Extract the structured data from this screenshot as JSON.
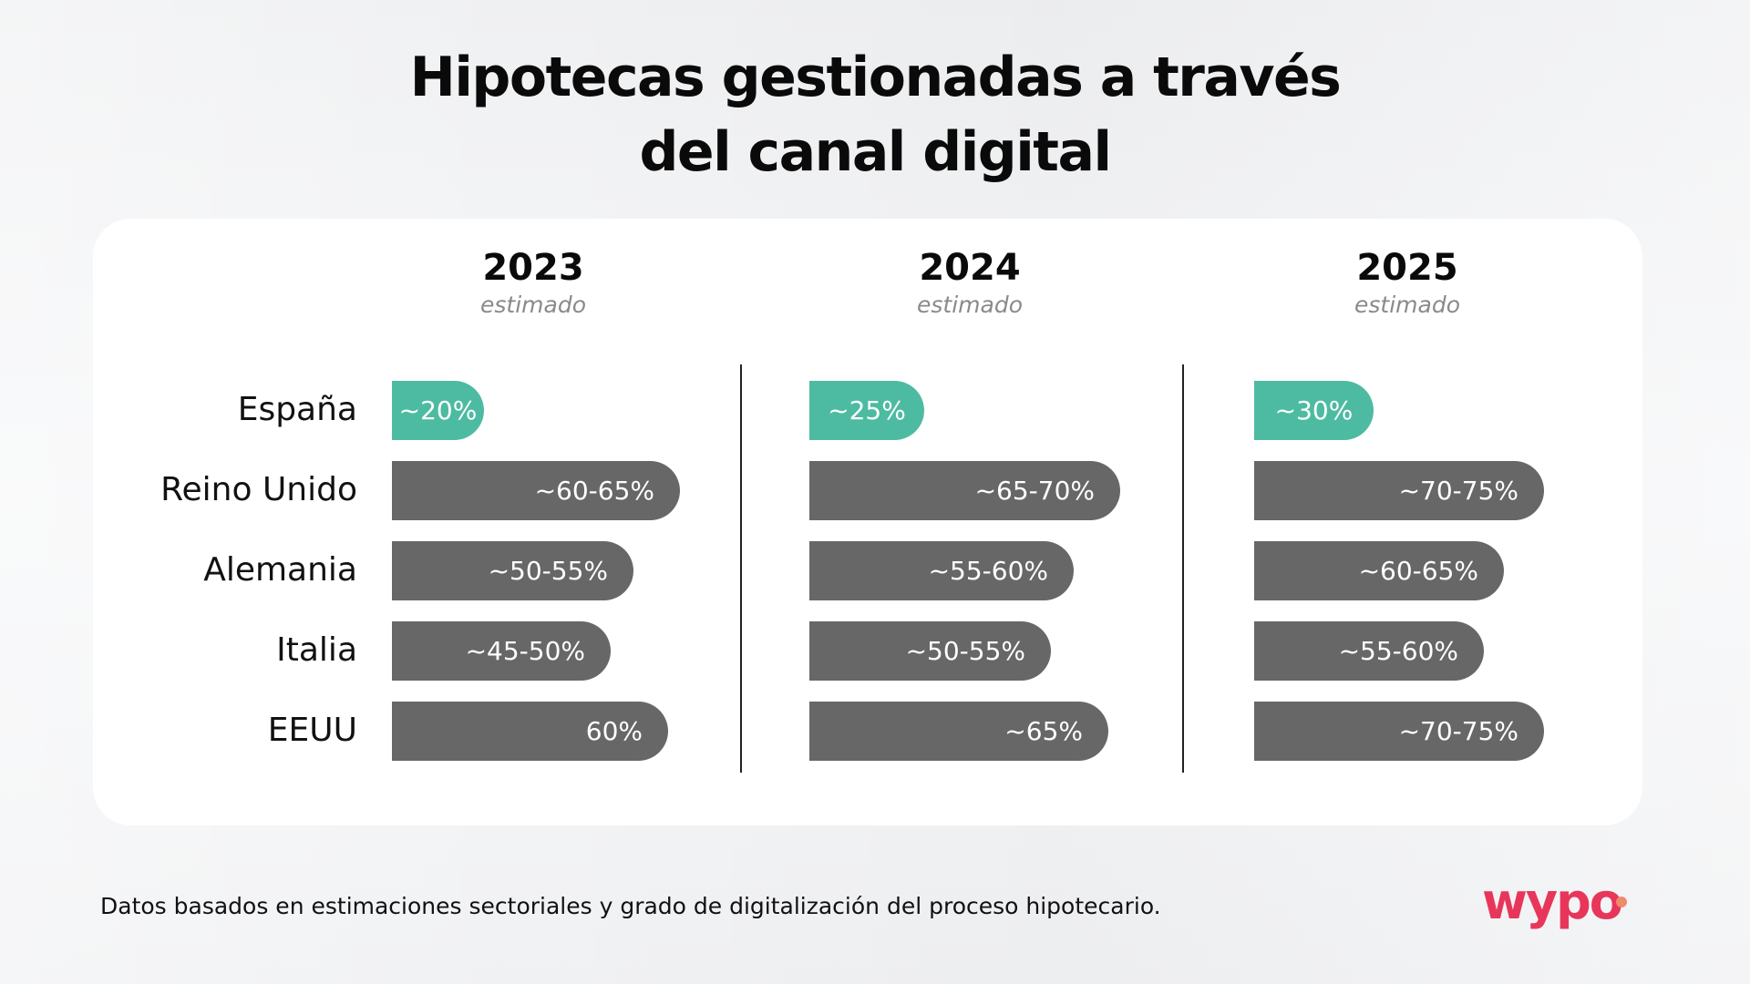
{
  "title_lines": [
    "Hipotecas gestionadas a través",
    "del canal digital"
  ],
  "footnote": "Datos basados en estimaciones sectoriales y grado de digitalización del proceso hipotecario.",
  "logo_text": "wypo",
  "colors": {
    "highlight": "#4dbba1",
    "bar": "#676767",
    "logo": "#e8365b",
    "logo_accent": "#f08b6a"
  },
  "chart_data": {
    "type": "bar",
    "orientation": "horizontal",
    "title": "Hipotecas gestionadas a través del canal digital",
    "categories": [
      "España",
      "Reino Unido",
      "Alemania",
      "Italia",
      "EEUU"
    ],
    "highlight_category": "España",
    "panels": [
      {
        "year": "2023",
        "subtitle": "estimado",
        "labels": [
          "~20%",
          "~60-65%",
          "~50-55%",
          "~45-50%",
          "60%"
        ],
        "values": [
          20,
          62.5,
          52.5,
          47.5,
          60
        ]
      },
      {
        "year": "2024",
        "subtitle": "estimado",
        "labels": [
          "~25%",
          "~65-70%",
          "~55-60%",
          "~50-55%",
          "~65%"
        ],
        "values": [
          25,
          67.5,
          57.5,
          52.5,
          65
        ]
      },
      {
        "year": "2025",
        "subtitle": "estimado",
        "labels": [
          "~30%",
          "~70-75%",
          "~60-65%",
          "~55-60%",
          "~70-75%"
        ],
        "values": [
          30,
          72.5,
          62.5,
          57.5,
          72.5
        ]
      }
    ]
  }
}
